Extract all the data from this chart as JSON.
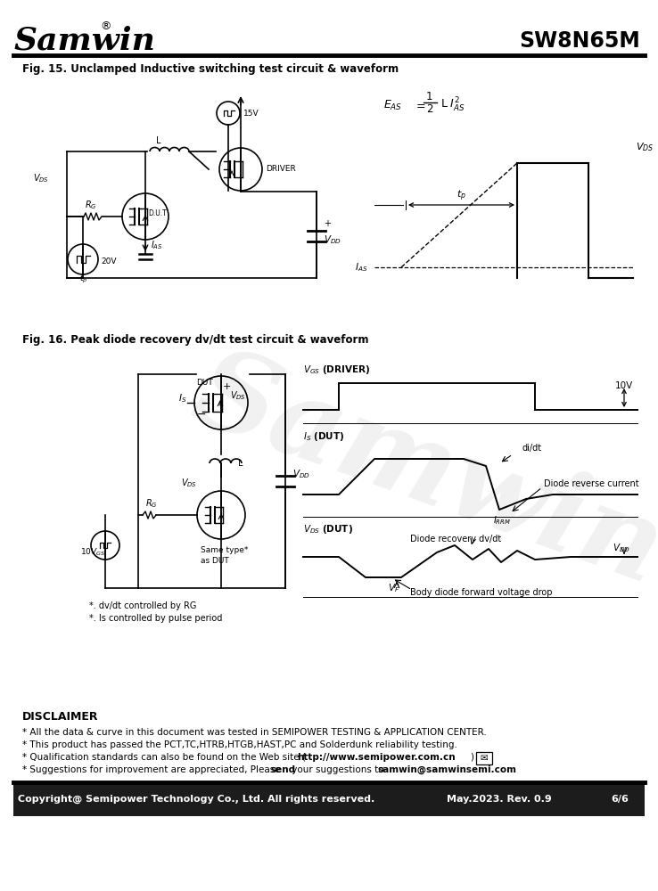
{
  "title_logo": "Samwin",
  "title_part": "SW8N65M",
  "fig15_title": "Fig. 15. Unclamped Inductive switching test circuit & waveform",
  "fig16_title": "Fig. 16. Peak diode recovery dv/dt test circuit & waveform",
  "disclaimer_title": "DISCLAIMER",
  "disclaimer_line1": "* All the data & curve in this document was tested in SEMIPOWER TESTING & APPLICATION CENTER.",
  "disclaimer_line2": "* This product has passed the PCT,TC,HTRB,HTGB,HAST,PC and Solderdunk reliability testing.",
  "disclaimer_line3a": "* Qualification standards can also be found on the Web site (",
  "disclaimer_line3b": "http://www.semipower.com.cn",
  "disclaimer_line3c": ")",
  "disclaimer_line4a": "* Suggestions for improvement are appreciated, Please ",
  "disclaimer_line4b": "send",
  "disclaimer_line4c": " your suggestions to ",
  "disclaimer_line4d": "samwin@samwinsemi.com",
  "footer_left": "Copyright@ Semipower Technology Co., Ltd. All rights reserved.",
  "footer_mid": "May.2023. Rev. 0.9",
  "footer_right": "6/6",
  "bg_color": "#ffffff",
  "watermark_color": "#c8c8c8"
}
